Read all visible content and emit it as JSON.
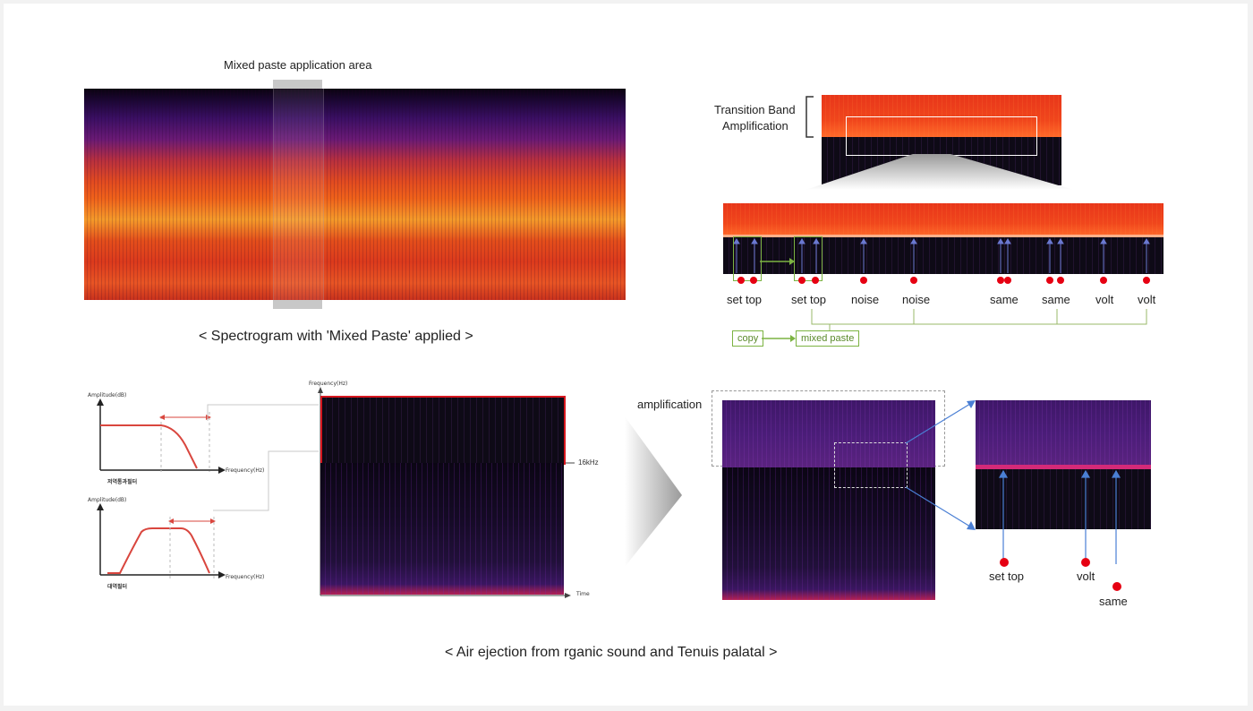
{
  "top_left": {
    "area_label": "Mixed paste application area",
    "caption": "< Spectrogram with 'Mixed Paste' applied >"
  },
  "top_right": {
    "transition_label_1": "Transition Band",
    "transition_label_2": "Amplification",
    "markers": [
      "set top",
      "set top",
      "noise",
      "noise",
      "same",
      "same",
      "volt",
      "volt"
    ],
    "copy_tag": "copy",
    "mixed_paste_tag": "mixed paste"
  },
  "bottom": {
    "caption": "< Air ejection from rganic sound and Tenuis palatal >",
    "filter1": {
      "y_axis": "Amplitude(dB)",
      "x_axis": "Frequency(Hz)",
      "name": "저역통과필터"
    },
    "filter2": {
      "y_axis": "Amplitude(dB)",
      "x_axis": "Frequency(Hz)",
      "name": "대역필터"
    },
    "spec_y_axis": "Frequency(Hz)",
    "spec_x_axis": "Time",
    "cutoff_label": "16kHz",
    "amplification_label": "amplification",
    "zoom_markers": [
      "set top",
      "volt",
      "same"
    ]
  },
  "colors": {
    "accent_red": "#e60012",
    "green": "#7cb342",
    "arrow_blue": "#4a7fd4"
  }
}
